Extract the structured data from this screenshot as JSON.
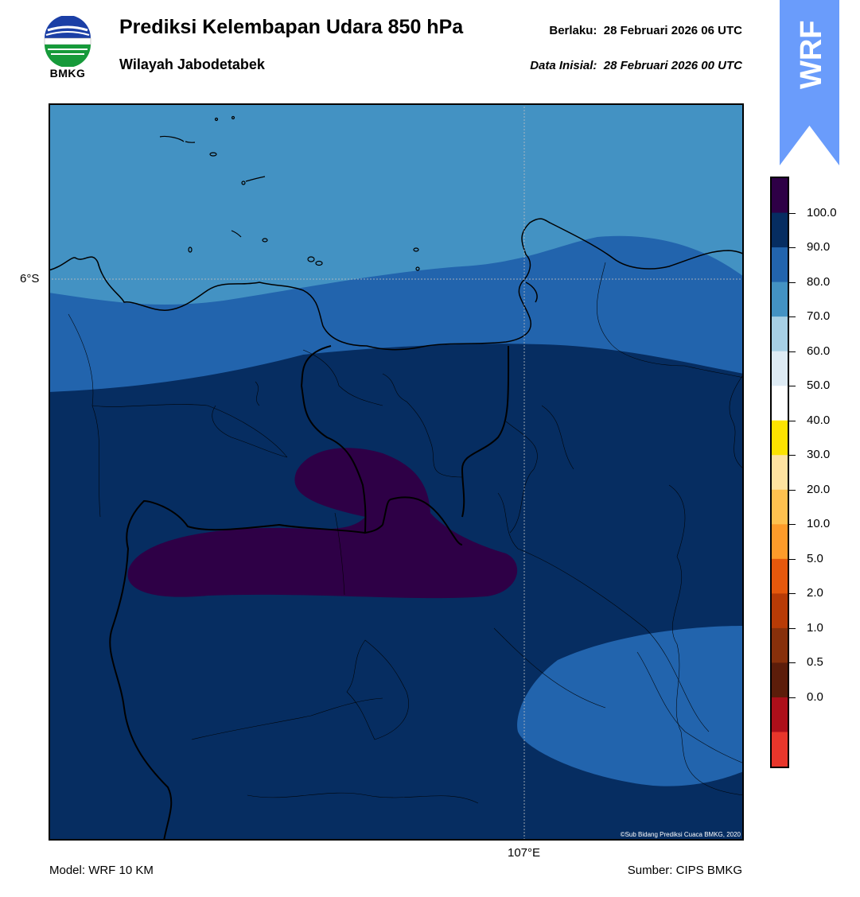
{
  "header": {
    "logo_text": "BMKG",
    "title": "Prediksi Kelembapan Udara 850 hPa",
    "subtitle": "Wilayah Jabodetabek",
    "valid_label": "Berlaku:",
    "valid_time": "28 Februari 2026 06 UTC",
    "init_label": "Data Inisial:",
    "init_time": "28 Februari 2026 00 UTC",
    "badge_text": "WRF"
  },
  "map": {
    "lat_label": "6°S",
    "lon_label": "107°E",
    "copyright": "©Sub Bidang Prediksi Cuaca BMKG, 2020"
  },
  "colorbar": {
    "tick_labels": [
      "100.0",
      "90.0",
      "80.0",
      "70.0",
      "60.0",
      "50.0",
      "40.0",
      "30.0",
      "20.0",
      "10.0",
      "5.0",
      "2.0",
      "1.0",
      "0.5",
      "0.0"
    ],
    "colors_top_to_bottom": [
      "#2e0046",
      "#062d61",
      "#2264ad",
      "#4392c3",
      "#a6cfe4",
      "#deebf4",
      "#ffffff",
      "#fce300",
      "#fee3a0",
      "#fec14f",
      "#fd9b2a",
      "#e5580c",
      "#b83b06",
      "#87300b",
      "#5c1d0a",
      "#ad0f1a",
      "#e8362b"
    ]
  },
  "footer": {
    "model": "Model: WRF 10 KM",
    "source": "Sumber: CIPS BMKG"
  },
  "colors": {
    "humidity_70_80": "#4392c3",
    "humidity_80_90": "#2264ad",
    "humidity_90_100": "#062d61",
    "humidity_100_plus": "#2e0046",
    "badge_blue": "#6a9cfb"
  }
}
